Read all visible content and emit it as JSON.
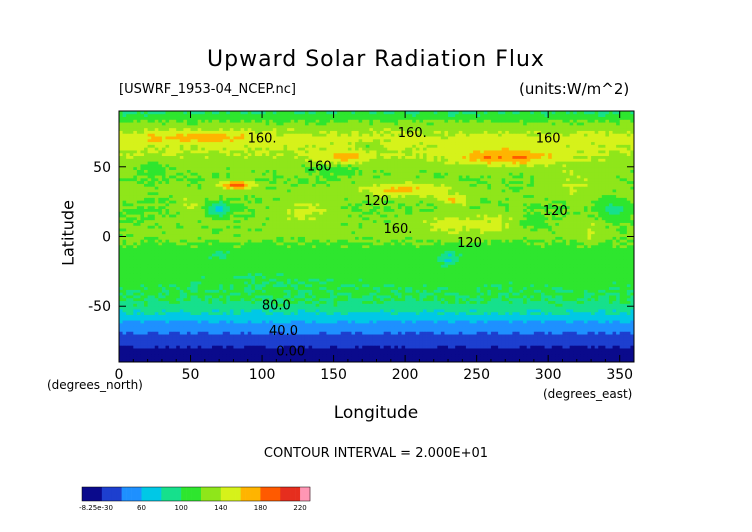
{
  "chart_data": {
    "type": "heatmap",
    "title": "Upward Solar Radiation Flux",
    "subtitle_left": "[USWRF_1953-04_NCEP.nc]",
    "subtitle_right": "(units:W/m^2)",
    "xlabel": "Longitude",
    "ylabel": "Latitude",
    "x_unit_left": "(degrees_north)",
    "x_unit_right": "(degrees_east)",
    "xlim": [
      0,
      360
    ],
    "ylim": [
      -90,
      90
    ],
    "x_ticks": [
      0,
      50,
      100,
      150,
      200,
      250,
      300,
      350
    ],
    "y_ticks": [
      -50,
      0,
      50
    ],
    "contour_interval_text": "CONTOUR INTERVAL = 2.000E+01",
    "contour_labels": [
      {
        "text": "160.",
        "lon": 100,
        "lat": 70
      },
      {
        "text": "160.",
        "lon": 205,
        "lat": 74
      },
      {
        "text": "160",
        "lon": 300,
        "lat": 70
      },
      {
        "text": "160",
        "lon": 140,
        "lat": 50
      },
      {
        "text": "120",
        "lon": 180,
        "lat": 25
      },
      {
        "text": "120",
        "lon": 305,
        "lat": 18
      },
      {
        "text": "160.",
        "lon": 195,
        "lat": 5
      },
      {
        "text": "120",
        "lon": 245,
        "lat": -5
      },
      {
        "text": "80.0",
        "lon": 110,
        "lat": -50
      },
      {
        "text": "40.0",
        "lon": 115,
        "lat": -68
      },
      {
        "text": "0.00",
        "lon": 120,
        "lat": -83
      }
    ],
    "colorbar": {
      "range": [
        -8.25e-30,
        230
      ],
      "tick_labels": [
        "-8.25e-30",
        "60",
        "100",
        "140",
        "180",
        "220"
      ],
      "tick_values": [
        0,
        60,
        100,
        140,
        180,
        220
      ]
    },
    "latitude_profile": {
      "lat": [
        -90,
        -80,
        -70,
        -60,
        -55,
        -50,
        -45,
        -40,
        -30,
        -20,
        -10,
        0,
        10,
        20,
        30,
        40,
        50,
        60,
        70,
        80,
        90
      ],
      "flux": [
        2,
        18,
        38,
        62,
        78,
        92,
        100,
        102,
        108,
        112,
        110,
        126,
        124,
        118,
        126,
        122,
        126,
        140,
        148,
        128,
        96
      ]
    },
    "anomalies": [
      {
        "lon": 82,
        "lat": 37,
        "rx": 11,
        "ry": 3,
        "delta": 70
      },
      {
        "lon": 270,
        "lat": 57,
        "rx": 35,
        "ry": 6,
        "delta": 45
      },
      {
        "lon": 155,
        "lat": 57,
        "rx": 18,
        "ry": 4,
        "delta": 35
      },
      {
        "lon": 55,
        "lat": 72,
        "rx": 40,
        "ry": 4,
        "delta": 25
      },
      {
        "lon": 200,
        "lat": 34,
        "rx": 30,
        "ry": 5,
        "delta": 40
      },
      {
        "lon": 235,
        "lat": 26,
        "rx": 10,
        "ry": 4,
        "delta": 35
      },
      {
        "lon": 50,
        "lat": 23,
        "rx": 8,
        "ry": 8,
        "delta": 20
      },
      {
        "lon": 130,
        "lat": 18,
        "rx": 20,
        "ry": 8,
        "delta": 25
      },
      {
        "lon": 245,
        "lat": 10,
        "rx": 40,
        "ry": 8,
        "delta": 25
      },
      {
        "lon": 320,
        "lat": 40,
        "rx": 20,
        "ry": 10,
        "delta": 18
      },
      {
        "lon": 70,
        "lat": 20,
        "rx": 8,
        "ry": 5,
        "delta": -45
      },
      {
        "lon": 345,
        "lat": 20,
        "rx": 10,
        "ry": 8,
        "delta": -30
      },
      {
        "lon": 290,
        "lat": 10,
        "rx": 10,
        "ry": 5,
        "delta": -25
      },
      {
        "lon": 230,
        "lat": -15,
        "rx": 8,
        "ry": 6,
        "delta": -30
      },
      {
        "lon": 70,
        "lat": -12,
        "rx": 6,
        "ry": 5,
        "delta": -20
      },
      {
        "lon": 150,
        "lat": 48,
        "rx": 15,
        "ry": 5,
        "delta": -15
      },
      {
        "lon": 25,
        "lat": 50,
        "rx": 8,
        "ry": 6,
        "delta": -15
      },
      {
        "lon": 330,
        "lat": 5,
        "rx": 8,
        "ry": 10,
        "delta": 15
      },
      {
        "lon": 110,
        "lat": -30,
        "rx": 40,
        "ry": 5,
        "delta": -8
      },
      {
        "lon": 175,
        "lat": 65,
        "rx": 10,
        "ry": 3,
        "delta": -20
      }
    ]
  }
}
